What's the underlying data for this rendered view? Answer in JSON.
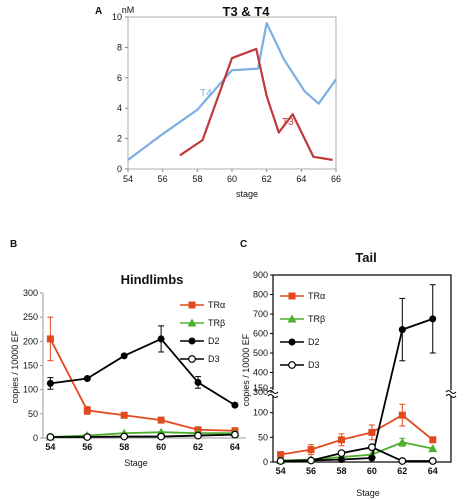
{
  "chart_data": [
    {
      "panel": "A",
      "type": "line",
      "title": "T3 & T4",
      "xlabel": "stage",
      "ylabel": "nM",
      "xlim": [
        54,
        66
      ],
      "ylim": [
        0,
        10
      ],
      "xticks": [
        54,
        56,
        58,
        60,
        62,
        64,
        66
      ],
      "yticks": [
        0,
        2,
        4,
        6,
        8,
        10
      ],
      "series": [
        {
          "name": "T4",
          "color": "#7aaee4",
          "points": [
            [
              54,
              0.6
            ],
            [
              56,
              2.3
            ],
            [
              58,
              3.9
            ],
            [
              60,
              6.5
            ],
            [
              61.5,
              6.6
            ],
            [
              62,
              9.6
            ],
            [
              63,
              7.2
            ],
            [
              64.2,
              5.1
            ],
            [
              65,
              4.3
            ],
            [
              66,
              5.9
            ]
          ]
        },
        {
          "name": "T3",
          "color": "#c0393b",
          "points": [
            [
              57,
              0.9
            ],
            [
              58.3,
              1.9
            ],
            [
              60,
              7.3
            ],
            [
              61.4,
              7.9
            ],
            [
              62,
              4.8
            ],
            [
              62.7,
              2.4
            ],
            [
              63.5,
              3.6
            ],
            [
              64.7,
              0.8
            ],
            [
              65.8,
              0.6
            ]
          ]
        }
      ]
    },
    {
      "panel": "B",
      "type": "line",
      "title": "Hindlimbs",
      "xlabel": "Stage",
      "ylabel": "copies / 10000 EF",
      "xlim": [
        53.6,
        64.6
      ],
      "ylim": [
        0,
        300
      ],
      "categories": [
        54,
        56,
        58,
        60,
        62,
        64
      ],
      "yticks": [
        0,
        50,
        100,
        150,
        200,
        250,
        300
      ],
      "legend": "right",
      "series": [
        {
          "name": "TRα",
          "marker": "square",
          "color": "#e24a1d",
          "values": [
            205,
            57,
            47,
            37,
            17,
            15
          ],
          "err": [
            45,
            8,
            4,
            4,
            2,
            2
          ]
        },
        {
          "name": "TRβ",
          "marker": "triangle",
          "color": "#4caf2e",
          "values": [
            2,
            5,
            10,
            12,
            10,
            10
          ],
          "err": [
            0,
            0,
            0,
            0,
            0,
            0
          ]
        },
        {
          "name": "D2",
          "marker": "circle",
          "color": "#000000",
          "values": [
            113,
            123,
            170,
            205,
            115,
            68
          ],
          "err": [
            12,
            0,
            0,
            27,
            12,
            0
          ]
        },
        {
          "name": "D3",
          "marker": "open-circle",
          "color": "#000000",
          "values": [
            2,
            2,
            3,
            3,
            5,
            7
          ],
          "err": [
            0,
            0,
            0,
            0,
            0,
            0
          ]
        }
      ]
    },
    {
      "panel": "C",
      "type": "line",
      "title": "Tail",
      "xlabel": "Stage",
      "ylabel": "copies / 10000 EF",
      "xlim": [
        53.5,
        65.2
      ],
      "axis_break": "between 150 and 300",
      "categories": [
        54,
        56,
        58,
        60,
        62,
        64
      ],
      "yticks": [
        0,
        50,
        100,
        150,
        300,
        400,
        500,
        600,
        700,
        800,
        900
      ],
      "legend": "left",
      "series": [
        {
          "name": "TRα",
          "marker": "square",
          "color": "#e24a1d",
          "values": [
            15,
            25,
            45,
            60,
            95,
            45
          ],
          "err": [
            0,
            10,
            12,
            15,
            22,
            0
          ]
        },
        {
          "name": "TRβ",
          "marker": "triangle",
          "color": "#4caf2e",
          "values": [
            3,
            5,
            10,
            15,
            40,
            27
          ],
          "err": [
            0,
            0,
            0,
            0,
            8,
            0
          ]
        },
        {
          "name": "D2",
          "marker": "circle",
          "color": "#000000",
          "values": [
            2,
            3,
            5,
            8,
            620,
            675
          ],
          "err": [
            0,
            0,
            0,
            0,
            160,
            175
          ]
        },
        {
          "name": "D3",
          "marker": "open-circle",
          "color": "#000000",
          "values": [
            2,
            3,
            18,
            30,
            2,
            2
          ],
          "err": [
            0,
            0,
            0,
            0,
            0,
            0
          ]
        }
      ]
    }
  ]
}
